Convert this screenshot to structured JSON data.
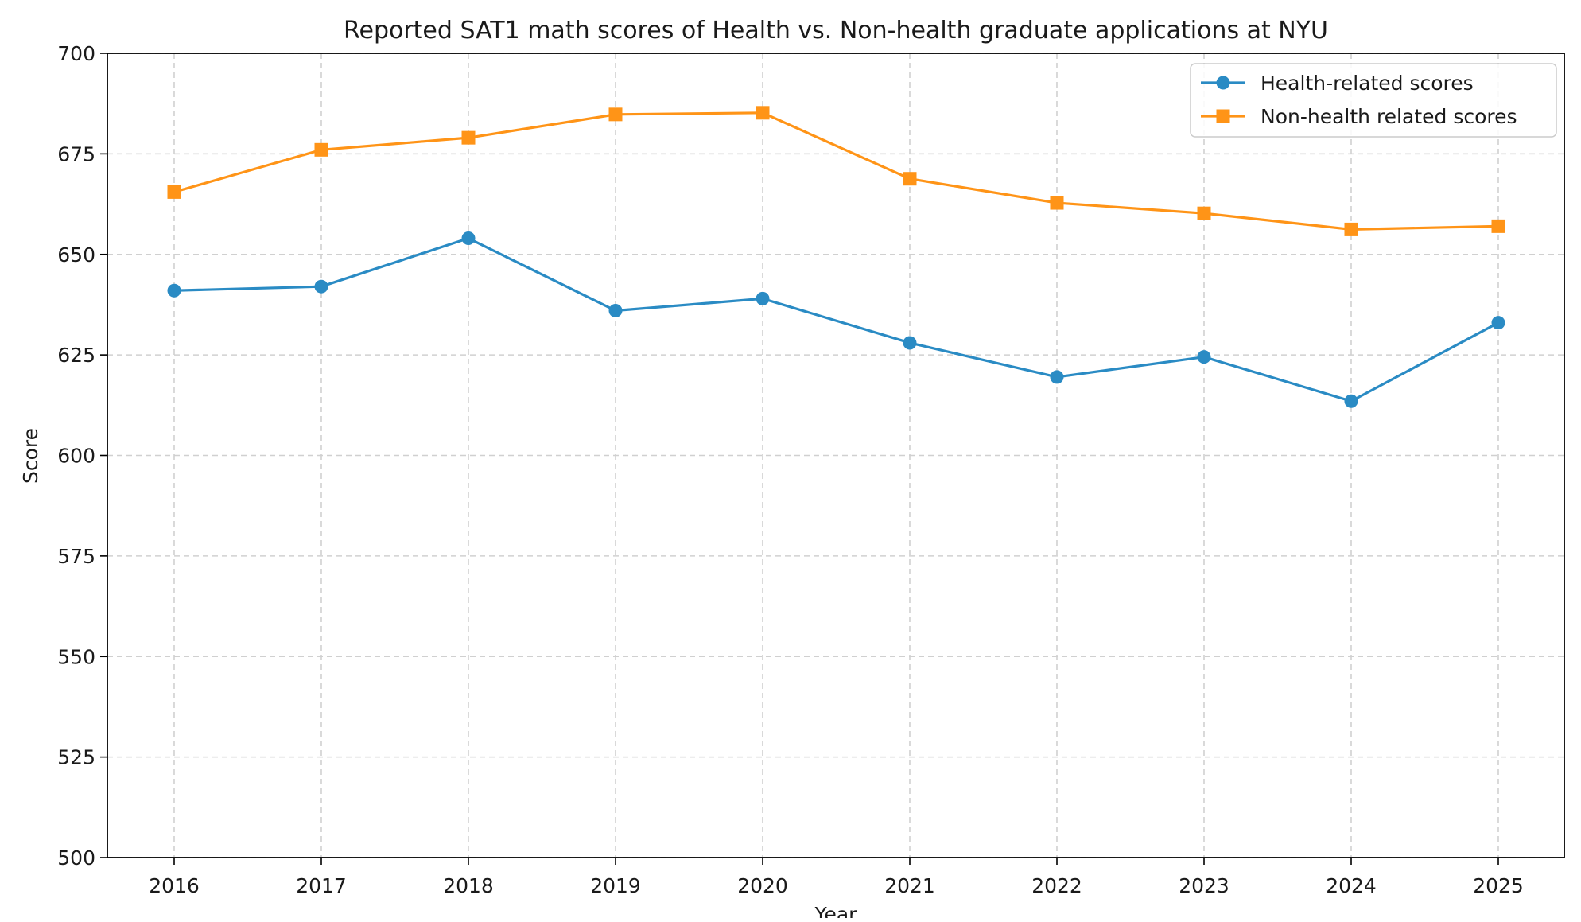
{
  "chart_data": {
    "type": "line",
    "title": "Reported SAT1 math scores of Health vs. Non-health graduate applications at NYU",
    "xlabel": "Year",
    "ylabel": "Score",
    "x": [
      "2016",
      "2017",
      "2018",
      "2019",
      "2020",
      "2021",
      "2022",
      "2023",
      "2024",
      "2025"
    ],
    "ylim": [
      500,
      700
    ],
    "yticks": [
      500,
      525,
      550,
      575,
      600,
      625,
      650,
      675,
      700
    ],
    "grid": true,
    "legend_position": "top-right",
    "series": [
      {
        "name": "Health-related scores",
        "color": "#2a8bc4",
        "marker": "circle",
        "values": [
          641,
          642,
          654,
          636,
          639,
          628,
          619.5,
          624.5,
          613.5,
          633
        ]
      },
      {
        "name": "Non-health related scores",
        "color": "#ff9417",
        "marker": "square",
        "values": [
          665.5,
          676,
          679,
          684.8,
          685.2,
          668.8,
          662.8,
          660.2,
          656.2,
          657
        ]
      }
    ]
  }
}
